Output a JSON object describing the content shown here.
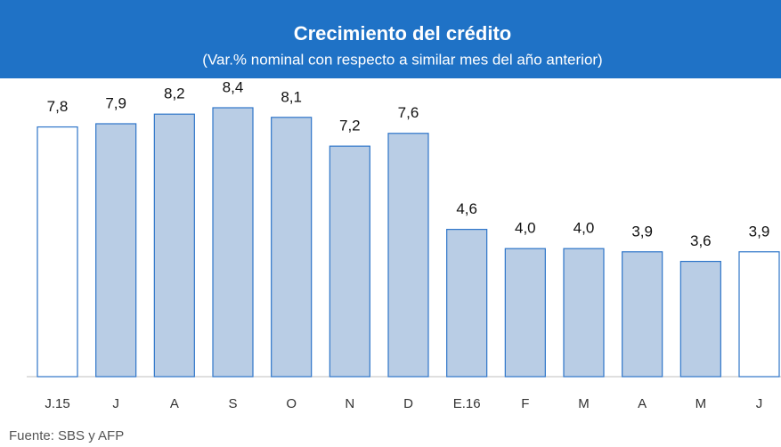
{
  "chart_data": {
    "type": "bar",
    "title": "Crecimiento del crédito",
    "subtitle": "(Var.% nominal con respecto a similar mes del año anterior)",
    "source": "Fuente: SBS y AFP",
    "categories": [
      "J.15",
      "J",
      "A",
      "S",
      "O",
      "N",
      "D",
      "E.16",
      "F",
      "M",
      "A",
      "M",
      "J"
    ],
    "values": [
      7.8,
      7.9,
      8.2,
      8.4,
      8.1,
      7.2,
      7.6,
      4.6,
      4.0,
      4.0,
      3.9,
      3.6,
      3.9
    ],
    "value_labels": [
      "7,8",
      "7,9",
      "8,2",
      "8,4",
      "8,1",
      "7,2",
      "7,6",
      "4,6",
      "4,0",
      "4,0",
      "3,9",
      "3,6",
      "3,9"
    ],
    "colors": [
      "#ffffff",
      "#b9cde5",
      "#b9cde5",
      "#b9cde5",
      "#b9cde5",
      "#b9cde5",
      "#b9cde5",
      "#b9cde5",
      "#b9cde5",
      "#b9cde5",
      "#b9cde5",
      "#b9cde5",
      "#ffffff"
    ],
    "edge_color": "#2e75c9",
    "header_color": "#1f72c6"
  }
}
